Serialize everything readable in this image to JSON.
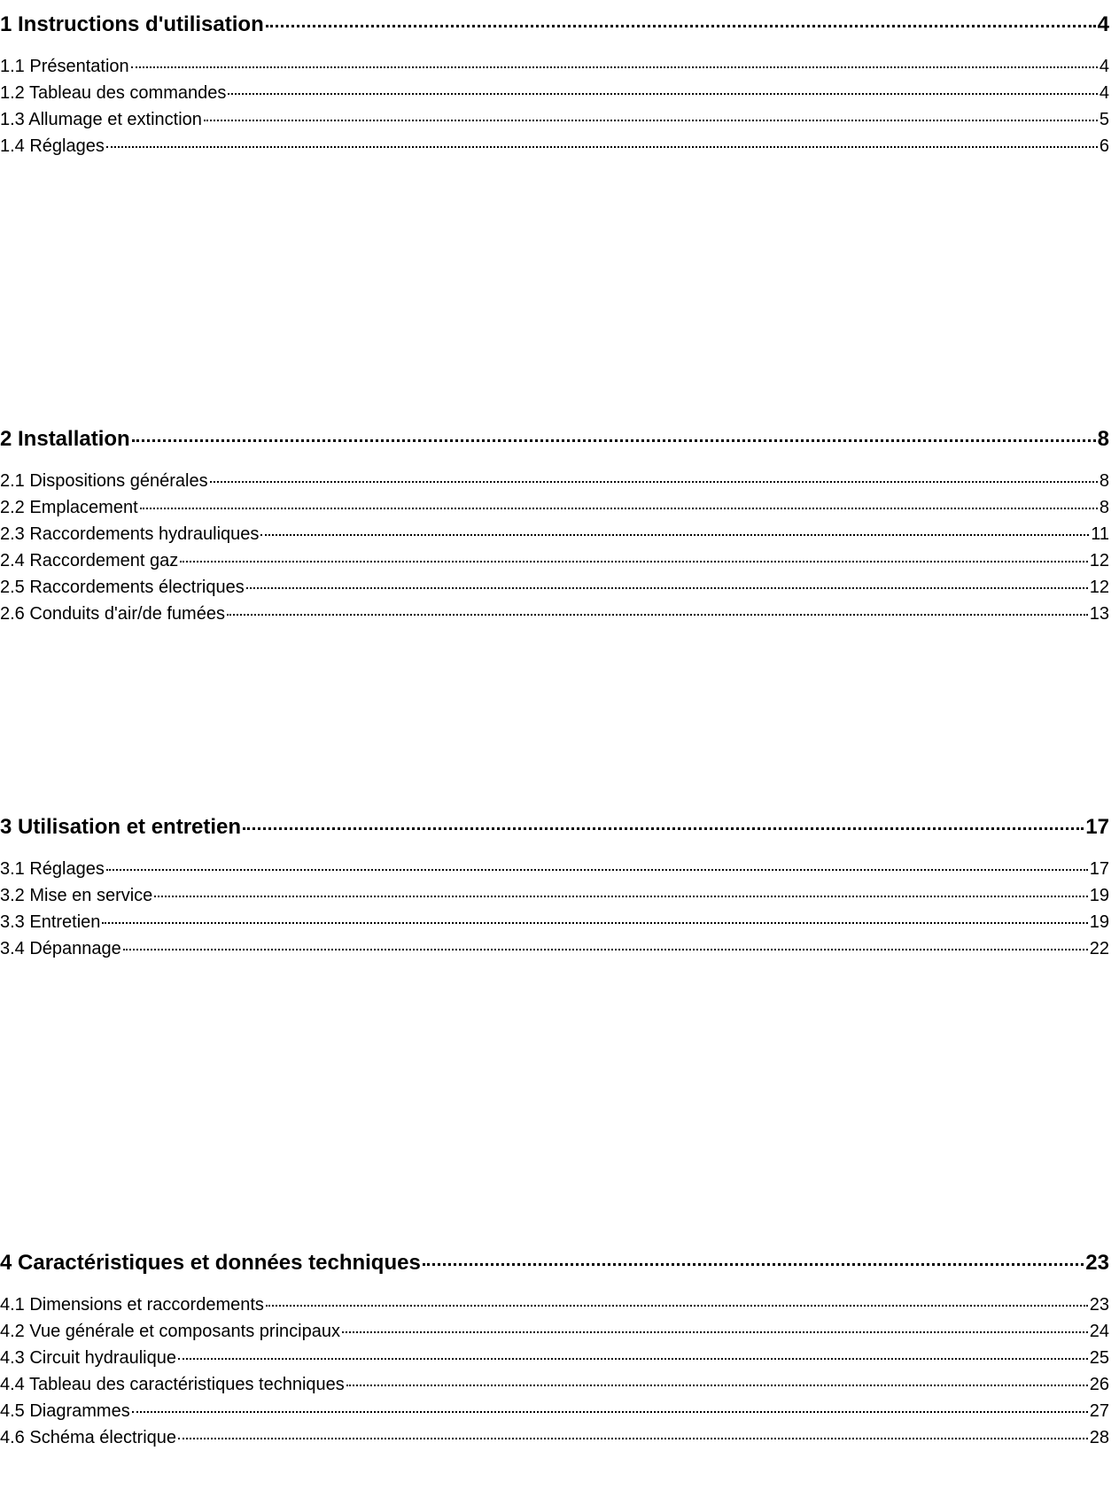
{
  "sections": [
    {
      "title": "1 Instructions d'utilisation",
      "page": "4",
      "items": [
        {
          "title": "1.1 Présentation",
          "page": "4"
        },
        {
          "title": "1.2 Tableau des commandes",
          "page": "4"
        },
        {
          "title": "1.3 Allumage et extinction",
          "page": "5"
        },
        {
          "title": "1.4 Réglages",
          "page": "6"
        }
      ]
    },
    {
      "title": "2 Installation",
      "page": "8",
      "items": [
        {
          "title": "2.1 Dispositions générales",
          "page": "8"
        },
        {
          "title": "2.2 Emplacement",
          "page": "8"
        },
        {
          "title": "2.3 Raccordements hydrauliques",
          "page": "11"
        },
        {
          "title": "2.4 Raccordement gaz",
          "page": "12"
        },
        {
          "title": "2.5 Raccordements électriques",
          "page": "12"
        },
        {
          "title": "2.6 Conduits d'air/de fumées",
          "page": "13"
        }
      ]
    },
    {
      "title": "3 Utilisation et entretien",
      "page": "17",
      "items": [
        {
          "title": "3.1 Réglages",
          "page": "17"
        },
        {
          "title": "3.2 Mise en service",
          "page": "19"
        },
        {
          "title": "3.3 Entretien",
          "page": "19"
        },
        {
          "title": "3.4 Dépannage",
          "page": "22"
        }
      ]
    },
    {
      "title": "4 Caractéristiques et données techniques",
      "page": "23",
      "items": [
        {
          "title": "4.1 Dimensions et raccordements",
          "page": "23"
        },
        {
          "title": "4.2 Vue générale et composants principaux",
          "page": "24"
        },
        {
          "title": "4.3 Circuit hydraulique",
          "page": "25"
        },
        {
          "title": "4.4 Tableau des caractéristiques techniques",
          "page": "26"
        },
        {
          "title": "4.5 Diagrammes",
          "page": "27"
        },
        {
          "title": "4.6 Schéma électrique",
          "page": "28"
        }
      ]
    }
  ]
}
